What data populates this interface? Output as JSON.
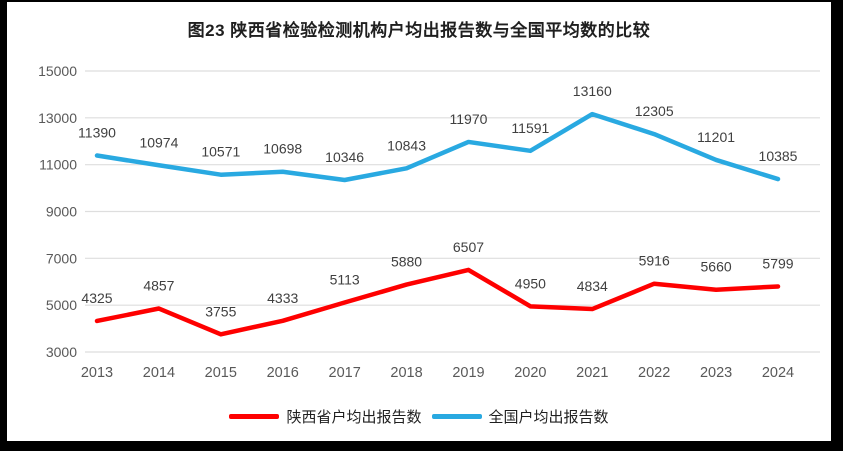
{
  "title": "图23 陕西省检验检测机构户均出报告数与全国平均数的比较",
  "chart_data": {
    "type": "line",
    "title": "图23 陕西省检验检测机构户均出报告数与全国平均数的比较",
    "categories": [
      "2013",
      "2014",
      "2015",
      "2016",
      "2017",
      "2018",
      "2019",
      "2020",
      "2021",
      "2022",
      "2023",
      "2024"
    ],
    "series": [
      {
        "name": "陕西省户均出报告数",
        "color": "#FE0000",
        "values": [
          4325,
          4857,
          3755,
          4333,
          5113,
          5880,
          6507,
          4950,
          4834,
          5916,
          5660,
          5799
        ]
      },
      {
        "name": "全国户均出报告数",
        "color": "#29A9E1",
        "values": [
          11390,
          10974,
          10571,
          10698,
          10346,
          10843,
          11970,
          11591,
          13160,
          12305,
          11201,
          10385
        ]
      }
    ],
    "xlabel": "",
    "ylabel": "",
    "ylim": [
      3000,
      15000
    ],
    "yticks": [
      3000,
      5000,
      7000,
      9000,
      11000,
      13000,
      15000
    ],
    "grid": true,
    "gridline_color": "#DEDEDE",
    "axis_label_color": "#595959",
    "data_label_color": "#404040",
    "legend_position": "bottom"
  },
  "legend": {
    "items": [
      {
        "label": "陕西省户均出报告数",
        "color": "#FE0000"
      },
      {
        "label": "全国户均出报告数",
        "color": "#29A9E1"
      }
    ]
  }
}
